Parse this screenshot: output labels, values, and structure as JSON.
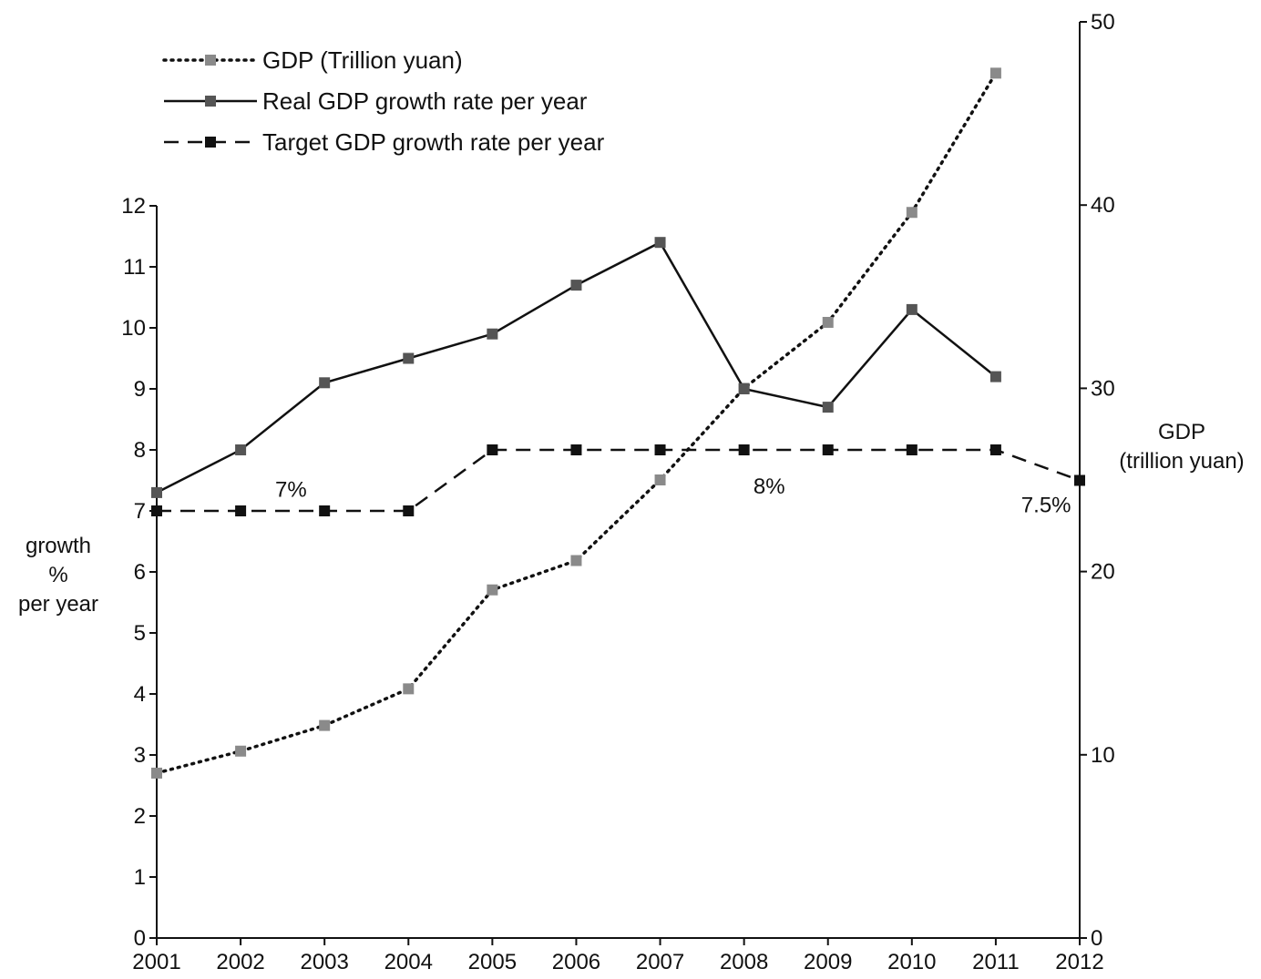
{
  "chart_data": {
    "type": "line",
    "x": [
      "2001",
      "2002",
      "2003",
      "2004",
      "2005",
      "2006",
      "2007",
      "2008",
      "2009",
      "2010",
      "2011",
      "2012"
    ],
    "left_axis": {
      "label_lines": [
        "growth",
        "%",
        "per year"
      ],
      "range": [
        0,
        12
      ],
      "ticks": [
        "0",
        "1",
        "2",
        "3",
        "4",
        "5",
        "6",
        "7",
        "8",
        "9",
        "10",
        "11",
        "12"
      ]
    },
    "right_axis": {
      "label_lines": [
        "GDP",
        "(trillion yuan)"
      ],
      "range": [
        0,
        50
      ],
      "ticks": [
        "0",
        "10",
        "20",
        "30",
        "40",
        "50"
      ]
    },
    "series": [
      {
        "name": "GDP (Trillion yuan)",
        "axis": "right",
        "style": "dotted",
        "marker_color": "#8a8a8a",
        "line_color": "#111111",
        "values": [
          9.0,
          10.2,
          11.6,
          13.6,
          19.0,
          20.6,
          25.0,
          30.0,
          33.6,
          39.6,
          47.2,
          null
        ]
      },
      {
        "name": "Real GDP growth rate per year",
        "axis": "left",
        "style": "solid",
        "marker_color": "#555555",
        "line_color": "#111111",
        "values": [
          7.3,
          8.0,
          9.1,
          9.5,
          9.9,
          10.7,
          11.4,
          9.0,
          8.7,
          10.3,
          9.2,
          null
        ]
      },
      {
        "name": "Target GDP growth rate per year",
        "axis": "left",
        "style": "dashed",
        "marker_color": "#111111",
        "line_color": "#111111",
        "values": [
          7.0,
          7.0,
          7.0,
          7.0,
          8.0,
          8.0,
          8.0,
          8.0,
          8.0,
          8.0,
          8.0,
          7.5
        ]
      }
    ],
    "annotations": [
      {
        "text": "7%",
        "x": "2002.6",
        "y": 7.35
      },
      {
        "text": "8%",
        "x": "2008.3",
        "y": 7.4
      },
      {
        "text": "7.5%",
        "x": "2011.6",
        "y": 7.1
      }
    ],
    "legend_position": "top-left",
    "grid": false
  }
}
